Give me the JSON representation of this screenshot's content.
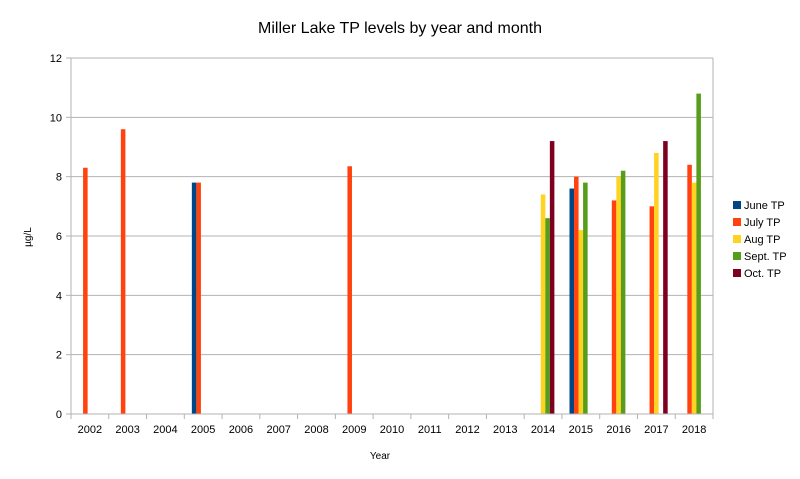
{
  "chart_data": {
    "type": "bar",
    "title": "Miller Lake TP levels by year and month",
    "xlabel": "Year",
    "ylabel": "µg/L",
    "ylim": [
      0,
      12
    ],
    "yticks": [
      0,
      2,
      4,
      6,
      8,
      10,
      12
    ],
    "grid": true,
    "legend_position": "right",
    "categories": [
      "2002",
      "2003",
      "2004",
      "2005",
      "2006",
      "2007",
      "2008",
      "2009",
      "2010",
      "2011",
      "2012",
      "2013",
      "2014",
      "2015",
      "2016",
      "2017",
      "2018"
    ],
    "series": [
      {
        "name": "June TP",
        "color": "#004586",
        "values": [
          null,
          null,
          null,
          7.8,
          null,
          null,
          null,
          null,
          null,
          null,
          null,
          null,
          null,
          7.6,
          null,
          null,
          null
        ]
      },
      {
        "name": "July TP",
        "color": "#ff420e",
        "values": [
          8.3,
          9.6,
          null,
          7.8,
          null,
          null,
          null,
          8.35,
          null,
          null,
          null,
          null,
          null,
          8.0,
          7.2,
          7.0,
          8.4
        ]
      },
      {
        "name": "Aug TP",
        "color": "#ffd320",
        "values": [
          null,
          null,
          null,
          null,
          null,
          null,
          null,
          null,
          null,
          null,
          null,
          null,
          7.4,
          6.2,
          8.0,
          8.8,
          7.8
        ]
      },
      {
        "name": "Sept. TP",
        "color": "#579d1c",
        "values": [
          null,
          null,
          null,
          null,
          null,
          null,
          null,
          null,
          null,
          null,
          null,
          null,
          6.6,
          7.8,
          8.2,
          null,
          10.8
        ]
      },
      {
        "name": "Oct. TP",
        "color": "#7e0021",
        "values": [
          null,
          null,
          null,
          null,
          null,
          null,
          null,
          null,
          null,
          null,
          null,
          null,
          9.2,
          null,
          null,
          9.2,
          null
        ]
      }
    ]
  }
}
